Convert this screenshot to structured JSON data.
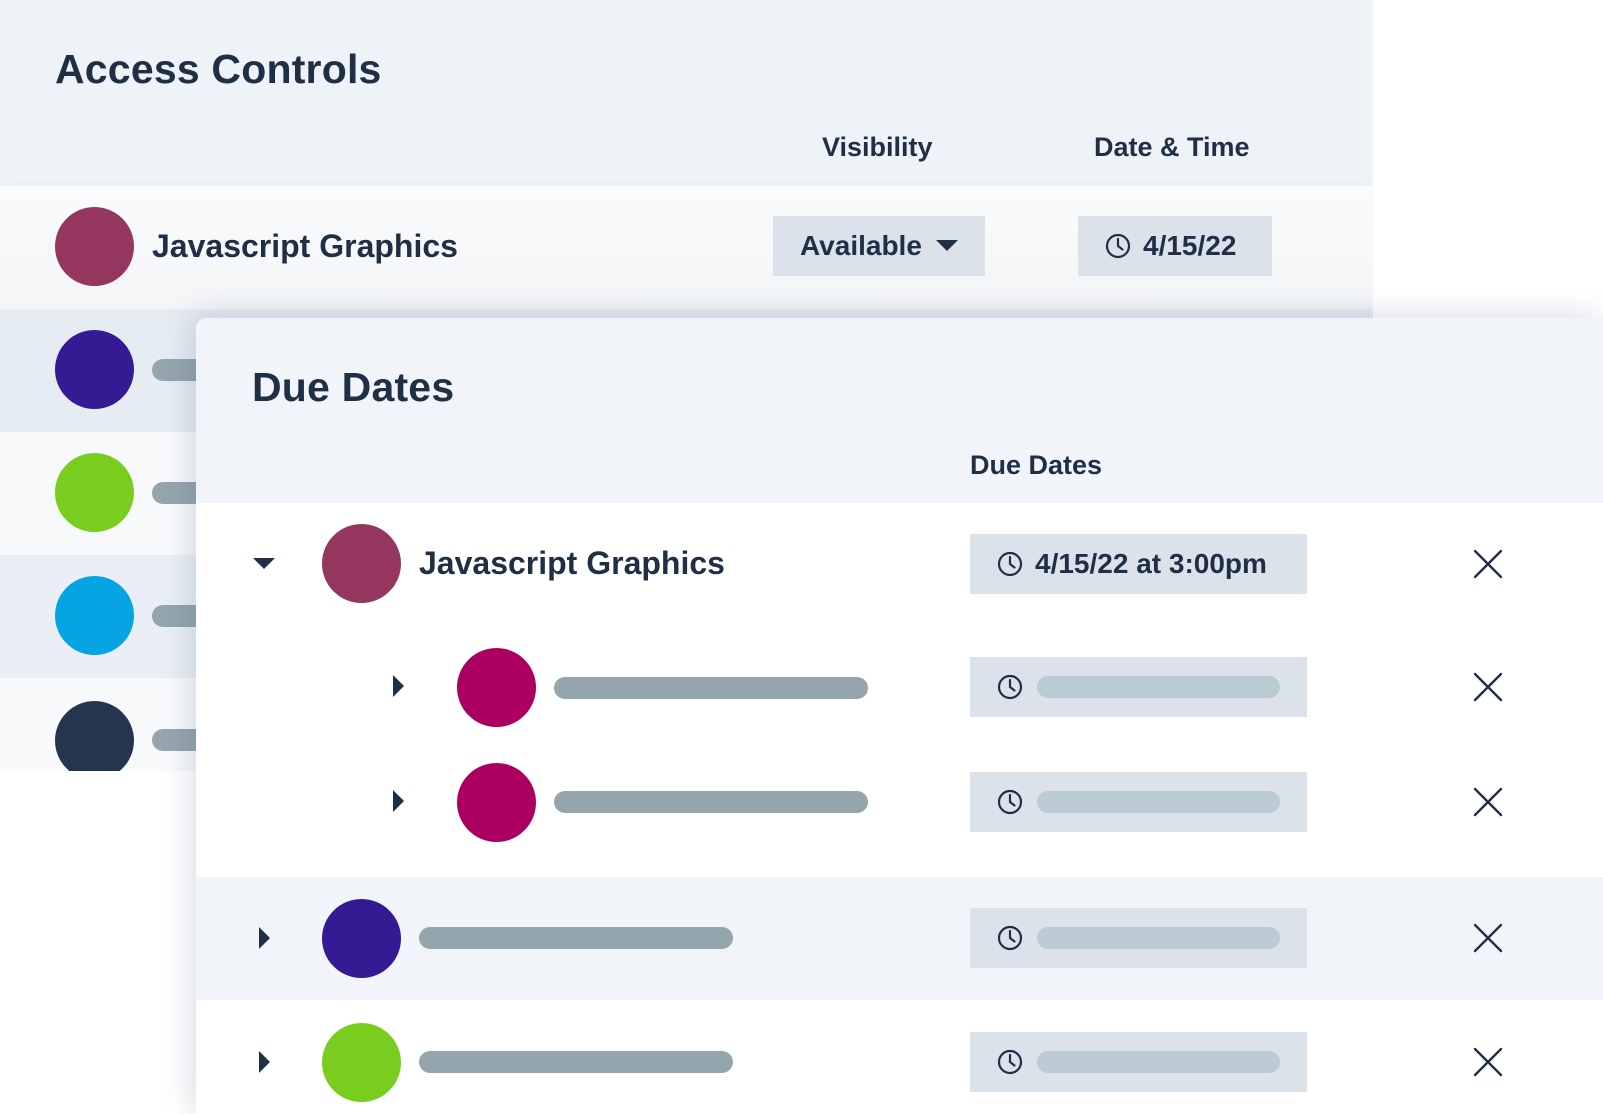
{
  "access_controls": {
    "title": "Access Controls",
    "columns": {
      "visibility": "Visibility",
      "date_time": "Date & Time"
    },
    "first_row": {
      "name": "Javascript Graphics",
      "avatar_color": "#94365e",
      "visibility": "Available",
      "date": "4/15/22"
    },
    "placeholder_avatar_colors": [
      "#351b93",
      "#78cd1e",
      "#06a4e2",
      "#25354d"
    ]
  },
  "due_dates": {
    "title": "Due Dates",
    "column": "Due Dates",
    "expanded_row": {
      "name": "Javascript Graphics",
      "avatar_color": "#94365e",
      "due": "4/15/22 at 3:00pm"
    },
    "child_avatar_color": "#ab0061",
    "placeholder_avatar_colors": [
      "#351b93",
      "#78cd1e"
    ]
  },
  "icons": [
    "clock-icon",
    "caret-down-icon",
    "caret-right-icon",
    "close-icon",
    "dropdown-arrow-icon"
  ],
  "colors": {
    "text": "#1f2f45",
    "panel_bg": "#eef3f8",
    "pill_bg": "#dbe2ea",
    "placeholder_bar": "#94a5ad"
  }
}
